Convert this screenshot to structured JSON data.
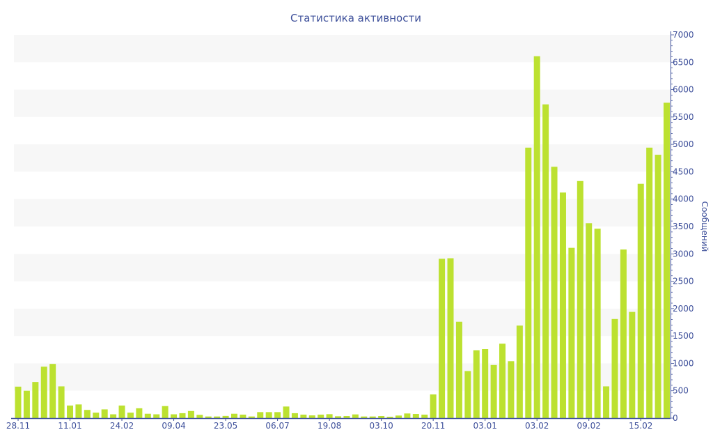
{
  "chart_data": {
    "type": "bar",
    "title": "Статистика активности",
    "xlabel": "",
    "ylabel": "Сообщений",
    "ylim": [
      0,
      7000
    ],
    "yticks": [
      0,
      500,
      1000,
      1500,
      2000,
      2500,
      3000,
      3500,
      4000,
      4500,
      5000,
      5500,
      6000,
      6500,
      7000
    ],
    "y_axis_side": "right",
    "grid": "alternating horizontal bands",
    "x_tick_labels": [
      {
        "bar_index": 0,
        "label": "28.11"
      },
      {
        "bar_index": 6,
        "label": "11.01"
      },
      {
        "bar_index": 12,
        "label": "24.02"
      },
      {
        "bar_index": 18,
        "label": "09.04"
      },
      {
        "bar_index": 24,
        "label": "23.05"
      },
      {
        "bar_index": 30,
        "label": "06.07"
      },
      {
        "bar_index": 36,
        "label": "19.08"
      },
      {
        "bar_index": 42,
        "label": "03.10"
      },
      {
        "bar_index": 48,
        "label": "20.11"
      },
      {
        "bar_index": 54,
        "label": "03.01"
      },
      {
        "bar_index": 60,
        "label": "03.02"
      },
      {
        "bar_index": 66,
        "label": "09.02"
      },
      {
        "bar_index": 72,
        "label": "15.02"
      }
    ],
    "values": [
      575,
      500,
      660,
      940,
      990,
      580,
      230,
      250,
      150,
      100,
      160,
      70,
      230,
      100,
      180,
      80,
      70,
      220,
      70,
      90,
      130,
      60,
      30,
      30,
      40,
      80,
      64,
      30,
      110,
      110,
      110,
      212,
      90,
      64,
      50,
      64,
      72,
      34,
      38,
      68,
      30,
      30,
      38,
      25,
      47,
      85,
      76,
      64,
      433,
      2910,
      2920,
      1760,
      860,
      1240,
      1260,
      970,
      1360,
      1040,
      1690,
      4940,
      6610,
      5730,
      4590,
      4120,
      3110,
      4330,
      3560,
      3460,
      580,
      1810,
      3080,
      1940,
      4280,
      4940,
      4810,
      5760
    ],
    "colors": {
      "bar": "#bce130",
      "axis": "#3d4f9a",
      "band": "#f7f7f7"
    }
  }
}
